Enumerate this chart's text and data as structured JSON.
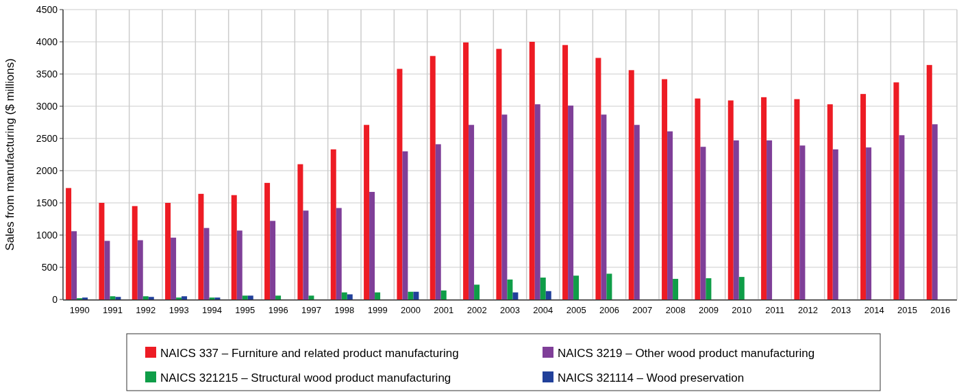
{
  "chart_data": {
    "type": "bar",
    "ylabel": "Sales from manufacturing ($ millions)",
    "categories": [
      "1990",
      "1991",
      "1992",
      "1993",
      "1994",
      "1995",
      "1996",
      "1997",
      "1998",
      "1999",
      "2000",
      "2001",
      "2002",
      "2003",
      "2004",
      "2005",
      "2006",
      "2007",
      "2008",
      "2009",
      "2010",
      "2011",
      "2012",
      "2013",
      "2014",
      "2015",
      "2016"
    ],
    "series": [
      {
        "name": "NAICS 337 – Furniture and related product manufacturing",
        "color": "#ed1c24",
        "values": [
          1730,
          1500,
          1450,
          1500,
          1640,
          1620,
          1810,
          2100,
          2330,
          2710,
          3580,
          3780,
          3990,
          3890,
          4000,
          3950,
          3750,
          3560,
          3420,
          3120,
          3090,
          3140,
          3110,
          3030,
          3190,
          3370,
          3640
        ]
      },
      {
        "name": "NAICS 3219 – Other wood product manufacturing",
        "color": "#7f3f98",
        "values": [
          1060,
          910,
          920,
          960,
          1110,
          1070,
          1220,
          1380,
          1420,
          1670,
          2300,
          2410,
          2710,
          2870,
          3030,
          3010,
          2870,
          2710,
          2610,
          2370,
          2470,
          2470,
          2390,
          2330,
          2360,
          2550,
          2720
        ]
      },
      {
        "name": "NAICS 321215 – Structural wood product manufacturing",
        "color": "#0f9d48",
        "values": [
          20,
          50,
          50,
          30,
          30,
          60,
          60,
          60,
          110,
          110,
          120,
          140,
          230,
          310,
          340,
          370,
          400,
          null,
          320,
          330,
          350,
          null,
          null,
          null,
          null,
          null,
          null
        ]
      },
      {
        "name": "NAICS 321114 – Wood preservation",
        "color": "#21409a",
        "values": [
          30,
          40,
          40,
          50,
          30,
          60,
          null,
          null,
          80,
          null,
          120,
          null,
          null,
          110,
          130,
          null,
          null,
          null,
          null,
          null,
          null,
          null,
          null,
          null,
          null,
          null,
          null
        ]
      }
    ],
    "ylim": [
      0,
      4500
    ],
    "yticks": [
      0,
      500,
      1000,
      1500,
      2000,
      2500,
      3000,
      3500,
      4000,
      4500
    ],
    "grid": true,
    "legend": "bottom"
  }
}
